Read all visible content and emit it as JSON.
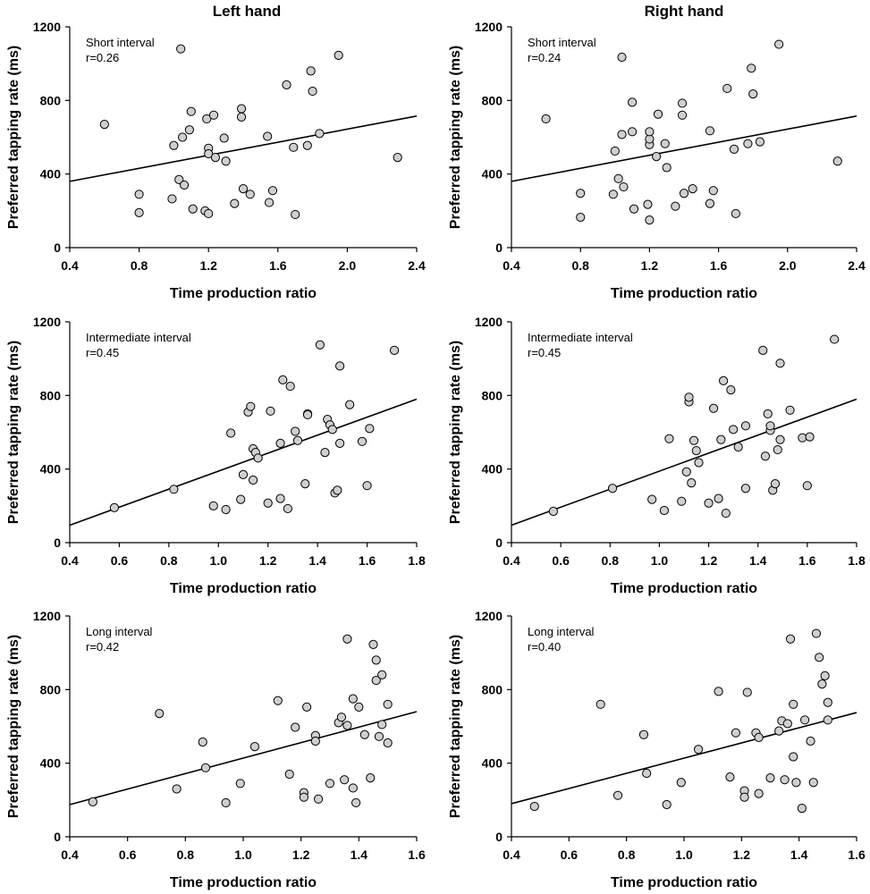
{
  "figure": {
    "left_title": "Left hand",
    "right_title": "Right hand"
  },
  "chart_data": [
    {
      "type": "scatter",
      "hand": "Left hand",
      "annotation_line1": "Short interval",
      "annotation_line2": "r=0.26",
      "xlabel": "Time production ratio",
      "ylabel": "Preferred tapping rate (ms)",
      "xlim": [
        0.4,
        2.4
      ],
      "ylim": [
        0,
        1200
      ],
      "xticks": [
        "0.4",
        "0.8",
        "1.2",
        "1.6",
        "2.0",
        "2.4"
      ],
      "yticks": [
        "0",
        "400",
        "800",
        "1200"
      ],
      "x": [
        0.6,
        0.8,
        0.8,
        0.99,
        1.0,
        1.03,
        1.04,
        1.05,
        1.06,
        1.09,
        1.1,
        1.11,
        1.18,
        1.19,
        1.2,
        1.2,
        1.2,
        1.23,
        1.24,
        1.29,
        1.3,
        1.35,
        1.39,
        1.39,
        1.4,
        1.44,
        1.54,
        1.55,
        1.57,
        1.65,
        1.69,
        1.7,
        1.77,
        1.79,
        1.8,
        1.84,
        1.95,
        2.29
      ],
      "y": [
        670,
        290,
        190,
        265,
        555,
        370,
        1080,
        600,
        340,
        640,
        740,
        210,
        200,
        700,
        185,
        540,
        510,
        720,
        490,
        595,
        470,
        240,
        755,
        710,
        320,
        290,
        605,
        245,
        310,
        885,
        545,
        180,
        555,
        960,
        850,
        620,
        1045,
        490
      ],
      "fit": {
        "x": [
          0.4,
          2.4
        ],
        "y": [
          360,
          715
        ]
      }
    },
    {
      "type": "scatter",
      "hand": "Right hand",
      "annotation_line1": "Short interval",
      "annotation_line2": "r=0.24",
      "xlabel": "Time production ratio",
      "ylabel": "Preferred tapping rate (ms)",
      "xlim": [
        0.4,
        2.4
      ],
      "ylim": [
        0,
        1200
      ],
      "xticks": [
        "0.4",
        "0.8",
        "1.2",
        "1.6",
        "2.0",
        "2.4"
      ],
      "yticks": [
        "0",
        "400",
        "800",
        "1200"
      ],
      "x": [
        0.6,
        0.8,
        0.8,
        0.99,
        1.0,
        1.02,
        1.04,
        1.04,
        1.05,
        1.1,
        1.1,
        1.11,
        1.19,
        1.2,
        1.2,
        1.2,
        1.2,
        1.24,
        1.25,
        1.29,
        1.3,
        1.35,
        1.39,
        1.39,
        1.4,
        1.45,
        1.55,
        1.55,
        1.57,
        1.65,
        1.69,
        1.7,
        1.77,
        1.79,
        1.8,
        1.84,
        1.95,
        2.29
      ],
      "y": [
        700,
        295,
        165,
        290,
        525,
        375,
        1035,
        615,
        330,
        790,
        630,
        210,
        235,
        560,
        150,
        590,
        630,
        495,
        725,
        565,
        435,
        225,
        785,
        720,
        295,
        320,
        635,
        240,
        310,
        865,
        535,
        185,
        565,
        975,
        835,
        575,
        1105,
        470
      ],
      "fit": {
        "x": [
          0.4,
          2.4
        ],
        "y": [
          360,
          715
        ]
      }
    },
    {
      "type": "scatter",
      "hand": "Left hand",
      "annotation_line1": "Intermediate interval",
      "annotation_line2": "r=0.45",
      "xlabel": "Time production ratio",
      "ylabel": "Preferred tapping rate (ms)",
      "xlim": [
        0.4,
        1.8
      ],
      "ylim": [
        0,
        1200
      ],
      "xticks": [
        "0.4",
        "0.6",
        "0.8",
        "1.0",
        "1.2",
        "1.4",
        "1.6",
        "1.8"
      ],
      "yticks": [
        "0",
        "400",
        "800",
        "1200"
      ],
      "x": [
        0.58,
        0.82,
        0.98,
        1.03,
        1.05,
        1.09,
        1.1,
        1.12,
        1.13,
        1.14,
        1.14,
        1.15,
        1.16,
        1.2,
        1.21,
        1.25,
        1.25,
        1.26,
        1.28,
        1.29,
        1.31,
        1.32,
        1.35,
        1.36,
        1.36,
        1.41,
        1.43,
        1.44,
        1.45,
        1.46,
        1.47,
        1.48,
        1.49,
        1.49,
        1.53,
        1.58,
        1.6,
        1.61,
        1.71
      ],
      "y": [
        190,
        290,
        200,
        180,
        595,
        235,
        370,
        710,
        740,
        340,
        510,
        490,
        460,
        215,
        715,
        240,
        540,
        885,
        185,
        850,
        605,
        555,
        320,
        700,
        695,
        1075,
        490,
        670,
        640,
        615,
        270,
        285,
        540,
        960,
        750,
        550,
        310,
        620,
        1045
      ],
      "fit": {
        "x": [
          0.4,
          1.8
        ],
        "y": [
          95,
          780
        ]
      }
    },
    {
      "type": "scatter",
      "hand": "Right hand",
      "annotation_line1": "Intermediate interval",
      "annotation_line2": "r=0.45",
      "xlabel": "Time production ratio",
      "ylabel": "Preferred tapping rate (ms)",
      "xlim": [
        0.4,
        1.8
      ],
      "ylim": [
        0,
        1200
      ],
      "xticks": [
        "0.4",
        "0.6",
        "0.8",
        "1.0",
        "1.2",
        "1.4",
        "1.6",
        "1.8"
      ],
      "yticks": [
        "0",
        "400",
        "800",
        "1200"
      ],
      "x": [
        0.57,
        0.81,
        0.97,
        1.02,
        1.04,
        1.09,
        1.11,
        1.12,
        1.12,
        1.13,
        1.14,
        1.15,
        1.16,
        1.2,
        1.22,
        1.24,
        1.25,
        1.26,
        1.27,
        1.29,
        1.3,
        1.32,
        1.35,
        1.35,
        1.42,
        1.43,
        1.44,
        1.45,
        1.45,
        1.46,
        1.47,
        1.48,
        1.49,
        1.49,
        1.53,
        1.58,
        1.6,
        1.61,
        1.71
      ],
      "y": [
        170,
        295,
        235,
        175,
        565,
        225,
        385,
        765,
        790,
        325,
        555,
        500,
        435,
        215,
        730,
        240,
        560,
        880,
        160,
        830,
        615,
        520,
        295,
        635,
        1045,
        470,
        700,
        610,
        635,
        285,
        320,
        505,
        975,
        560,
        720,
        570,
        310,
        575,
        1105
      ],
      "fit": {
        "x": [
          0.4,
          1.8
        ],
        "y": [
          95,
          780
        ]
      }
    },
    {
      "type": "scatter",
      "hand": "Left hand",
      "annotation_line1": "Long interval",
      "annotation_line2": "r=0.42",
      "xlabel": "Time production ratio",
      "ylabel": "Preferred tapping rate (ms)",
      "xlim": [
        0.4,
        1.6
      ],
      "ylim": [
        0,
        1200
      ],
      "xticks": [
        "0.4",
        "0.6",
        "0.8",
        "1.0",
        "1.2",
        "1.4",
        "1.6"
      ],
      "yticks": [
        "0",
        "400",
        "800",
        "1200"
      ],
      "x": [
        0.48,
        0.71,
        0.77,
        0.86,
        0.87,
        0.94,
        0.99,
        1.04,
        1.12,
        1.16,
        1.18,
        1.21,
        1.21,
        1.22,
        1.25,
        1.25,
        1.26,
        1.3,
        1.33,
        1.34,
        1.35,
        1.36,
        1.36,
        1.38,
        1.38,
        1.39,
        1.4,
        1.42,
        1.44,
        1.45,
        1.46,
        1.46,
        1.47,
        1.48,
        1.48,
        1.5,
        1.5
      ],
      "y": [
        190,
        670,
        260,
        515,
        375,
        185,
        290,
        490,
        740,
        340,
        595,
        240,
        215,
        705,
        550,
        520,
        205,
        290,
        620,
        650,
        310,
        605,
        1075,
        750,
        265,
        185,
        705,
        555,
        320,
        1045,
        960,
        850,
        545,
        880,
        610,
        510,
        720
      ],
      "fit": {
        "x": [
          0.4,
          1.6
        ],
        "y": [
          175,
          680
        ]
      }
    },
    {
      "type": "scatter",
      "hand": "Right hand",
      "annotation_line1": "Long interval",
      "annotation_line2": "r=0.40",
      "xlabel": "Time production ratio",
      "ylabel": "Preferred tapping rate (ms)",
      "xlim": [
        0.4,
        1.6
      ],
      "ylim": [
        0,
        1200
      ],
      "xticks": [
        "0.4",
        "0.6",
        "0.8",
        "1.0",
        "1.2",
        "1.4",
        "1.6"
      ],
      "yticks": [
        "0",
        "400",
        "800",
        "1200"
      ],
      "x": [
        0.48,
        0.71,
        0.77,
        0.86,
        0.87,
        0.94,
        0.99,
        1.05,
        1.12,
        1.16,
        1.18,
        1.21,
        1.21,
        1.22,
        1.25,
        1.26,
        1.26,
        1.3,
        1.33,
        1.34,
        1.35,
        1.36,
        1.37,
        1.38,
        1.38,
        1.39,
        1.41,
        1.42,
        1.44,
        1.45,
        1.46,
        1.47,
        1.48,
        1.49,
        1.5,
        1.5
      ],
      "y": [
        165,
        720,
        225,
        555,
        345,
        175,
        295,
        475,
        790,
        325,
        565,
        250,
        215,
        785,
        565,
        540,
        235,
        320,
        575,
        630,
        310,
        615,
        1075,
        435,
        720,
        295,
        155,
        635,
        520,
        295,
        1105,
        975,
        830,
        875,
        635,
        730
      ],
      "fit": {
        "x": [
          0.4,
          1.6
        ],
        "y": [
          180,
          675
        ]
      }
    }
  ]
}
